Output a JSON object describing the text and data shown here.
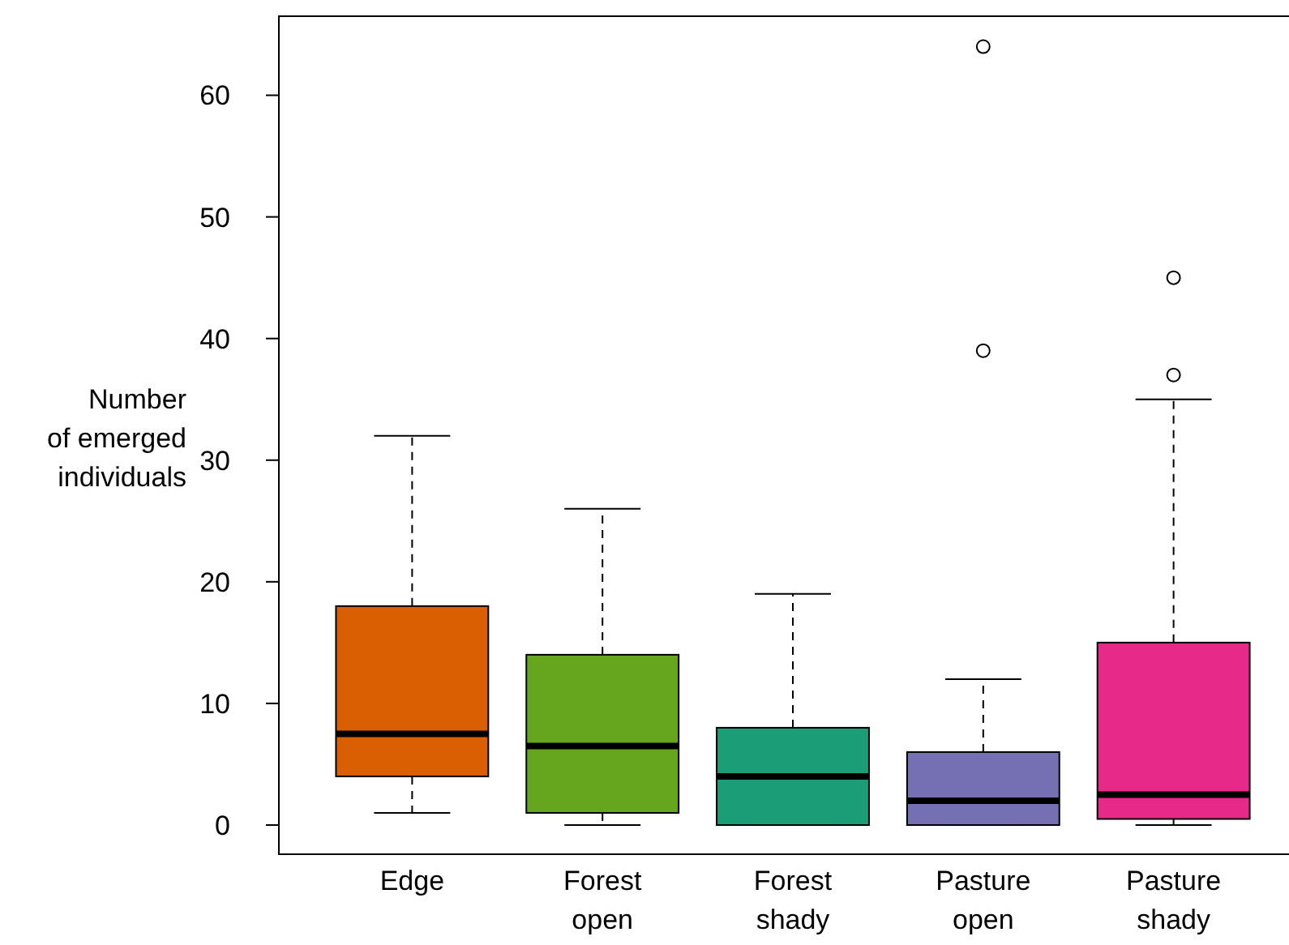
{
  "chart_data": {
    "type": "box",
    "ylabel": "Number of emerged individuals",
    "categories": [
      "Edge",
      "Forest open",
      "Forest shady",
      "Pasture open",
      "Pasture shady"
    ],
    "colors": [
      "#d95f02",
      "#66a61e",
      "#1b9e77",
      "#7570b3",
      "#e7298a"
    ],
    "boxes": [
      {
        "low": 1,
        "q1": 4,
        "median": 7.5,
        "q3": 18,
        "high": 32
      },
      {
        "low": 0,
        "q1": 1,
        "median": 6.5,
        "q3": 14,
        "high": 26
      },
      {
        "low": 0,
        "q1": 0,
        "median": 4,
        "q3": 8,
        "high": 19
      },
      {
        "low": 0,
        "q1": 0,
        "median": 2,
        "q3": 6,
        "high": 12,
        "outliers": [
          39,
          64
        ]
      },
      {
        "low": 0,
        "q1": 0.5,
        "median": 2.5,
        "q3": 15,
        "high": 35,
        "outliers": [
          37,
          45
        ]
      }
    ],
    "ylim": [
      -2.4,
      66.5
    ],
    "yticks": [
      0,
      10,
      20,
      30,
      40,
      50,
      60
    ],
    "grid": false
  }
}
